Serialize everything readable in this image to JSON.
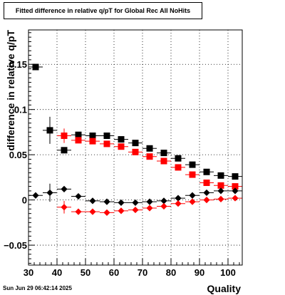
{
  "chart_data": {
    "type": "scatter",
    "title": "Fitted difference in relative q/pT for Global Rec All NoHits",
    "xlabel": "Quality",
    "ylabel": "difference in relative q/pT",
    "xlim": [
      30,
      105
    ],
    "ylim": [
      -0.072,
      0.188
    ],
    "x_ticks": [
      30,
      40,
      50,
      60,
      70,
      80,
      90,
      100
    ],
    "y_ticks": [
      -0.05,
      0,
      0.05,
      0.1,
      0.15
    ],
    "y_tick_labels": [
      "−0.05",
      "0",
      "0.05",
      "0.1",
      "0.15"
    ],
    "grid": true,
    "series": [
      {
        "color": "#000000",
        "marker": "square",
        "x": [
          32.5,
          37.5,
          42.5,
          47.5,
          52.5,
          57.5,
          62.5,
          67.5,
          72.5,
          77.5,
          82.5,
          87.5,
          92.5,
          97.5,
          102.5
        ],
        "y": [
          0.147,
          0.077,
          0.055,
          0.072,
          0.071,
          0.071,
          0.067,
          0.063,
          0.057,
          0.052,
          0.046,
          0.039,
          0.031,
          0.027,
          0.026
        ],
        "yerr": [
          0.0,
          0.015,
          0.003,
          0.003,
          0.002,
          0.002,
          0.002,
          0.002,
          0.002,
          0.002,
          0.002,
          0.002,
          0.002,
          0.002,
          0.002
        ]
      },
      {
        "color": "#ff0000",
        "marker": "square",
        "x": [
          42.5,
          47.5,
          52.5,
          57.5,
          62.5,
          67.5,
          72.5,
          77.5,
          82.5,
          87.5,
          92.5,
          97.5,
          102.5
        ],
        "y": [
          0.071,
          0.066,
          0.065,
          0.062,
          0.059,
          0.053,
          0.048,
          0.043,
          0.036,
          0.028,
          0.019,
          0.016,
          0.015
        ],
        "yerr": [
          0.008,
          0.003,
          0.003,
          0.002,
          0.002,
          0.002,
          0.002,
          0.002,
          0.002,
          0.002,
          0.002,
          0.002,
          0.002
        ]
      },
      {
        "color": "#000000",
        "marker": "diamond",
        "x": [
          32.5,
          37.5,
          42.5,
          47.5,
          52.5,
          57.5,
          62.5,
          67.5,
          72.5,
          77.5,
          82.5,
          87.5,
          92.5,
          97.5,
          102.5
        ],
        "y": [
          0.005,
          0.008,
          0.012,
          0.004,
          -0.001,
          -0.002,
          -0.003,
          -0.003,
          -0.002,
          -0.001,
          0.002,
          0.005,
          0.008,
          0.01,
          0.01
        ],
        "yerr": [
          0.0,
          0.01,
          0.003,
          0.002,
          0.002,
          0.002,
          0.002,
          0.002,
          0.002,
          0.002,
          0.002,
          0.002,
          0.002,
          0.002,
          0.002
        ]
      },
      {
        "color": "#ff0000",
        "marker": "diamond",
        "x": [
          42.5,
          47.5,
          52.5,
          57.5,
          62.5,
          67.5,
          72.5,
          77.5,
          82.5,
          87.5,
          92.5,
          97.5,
          102.5
        ],
        "y": [
          -0.008,
          -0.013,
          -0.013,
          -0.014,
          -0.012,
          -0.011,
          -0.009,
          -0.007,
          -0.004,
          -0.002,
          0.0,
          0.001,
          0.002
        ],
        "yerr": [
          0.007,
          0.003,
          0.002,
          0.002,
          0.002,
          0.002,
          0.002,
          0.002,
          0.002,
          0.002,
          0.002,
          0.002,
          0.002
        ]
      }
    ]
  },
  "footer": {
    "date": "Sun Jun 29 06:42:14 2025"
  }
}
